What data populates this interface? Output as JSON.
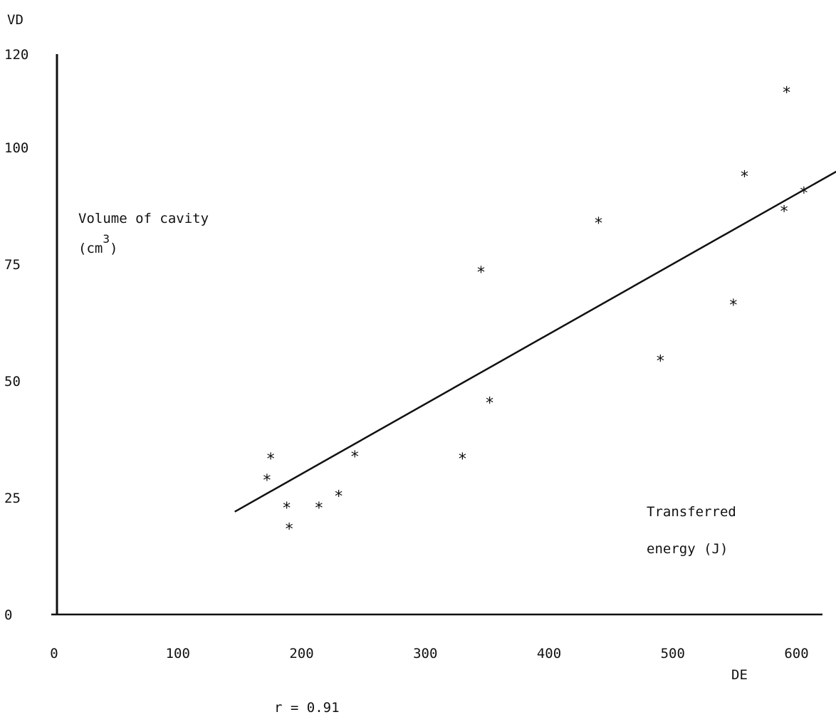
{
  "chart_data": {
    "type": "scatter",
    "y_axis_name": "VD",
    "x_axis_name": "DE",
    "ylabel_line1": "Volume of cavity",
    "ylabel_line2_base": "(cm",
    "ylabel_line2_sup": "3",
    "ylabel_line2_end": ")",
    "xlabel_line1": "Transferred",
    "xlabel_line2": "energy (J)",
    "annotation": "r = 0.91",
    "xlim": [
      0,
      600
    ],
    "ylim": [
      0,
      120
    ],
    "x_ticks": [
      0,
      100,
      200,
      300,
      400,
      500,
      600
    ],
    "y_ticks": [
      0,
      25,
      50,
      75,
      100,
      120
    ],
    "x_tick_labels": [
      "0",
      "100",
      "200",
      "300",
      "400",
      "500",
      "600"
    ],
    "y_tick_labels": [
      "0",
      "25",
      "50",
      "75",
      "100",
      "120"
    ],
    "marker": "*",
    "series": [
      {
        "points": [
          [
            172,
            29
          ],
          [
            175,
            33.5
          ],
          [
            188,
            23
          ],
          [
            190,
            18.5
          ],
          [
            214,
            23
          ],
          [
            230,
            25.5
          ],
          [
            243,
            34
          ],
          [
            330,
            33.5
          ],
          [
            345,
            73.5
          ],
          [
            352,
            45.5
          ],
          [
            440,
            84
          ],
          [
            490,
            54.5
          ],
          [
            549,
            66.5
          ],
          [
            558,
            94
          ],
          [
            590,
            86.5
          ],
          [
            592,
            112
          ],
          [
            606,
            90.5
          ]
        ]
      }
    ],
    "fit_line": {
      "x": [
        146,
        640
      ],
      "y": [
        22,
        96
      ]
    }
  }
}
